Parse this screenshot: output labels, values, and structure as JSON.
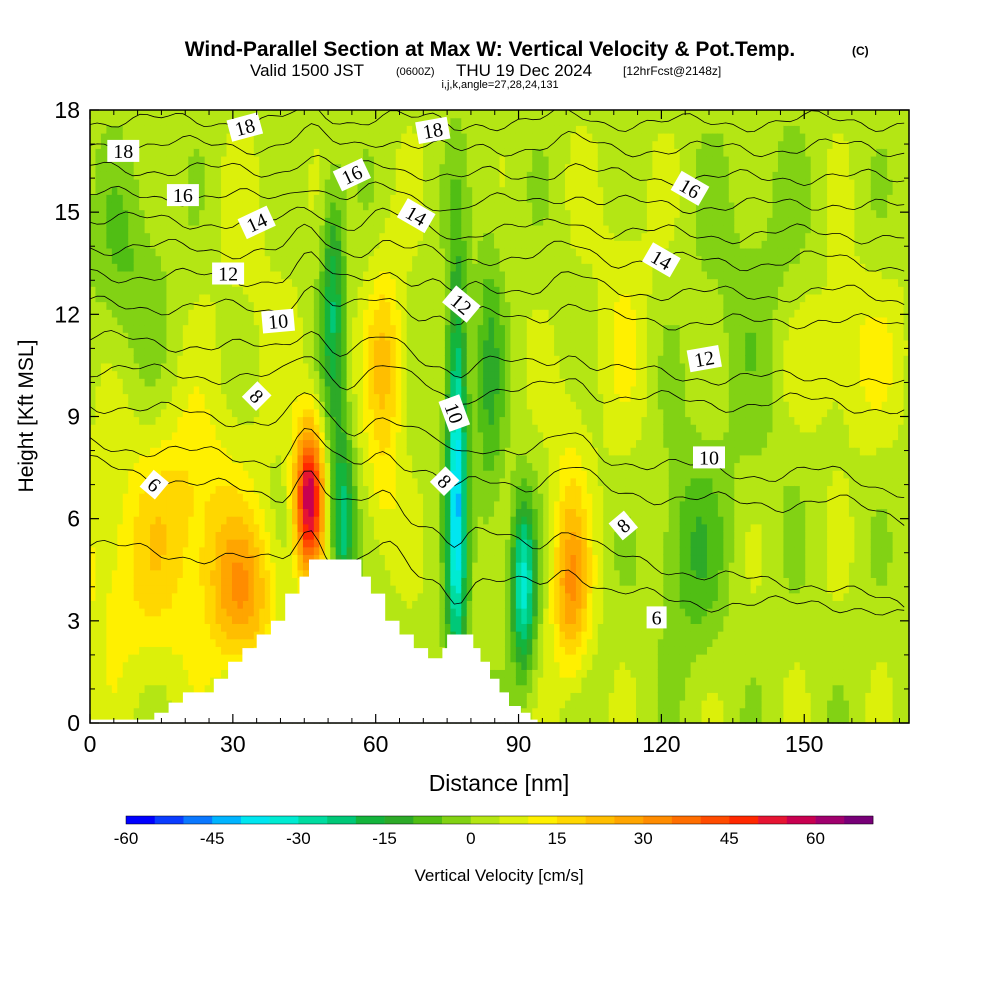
{
  "chart_data": {
    "type": "heatmap",
    "title": "Wind-Parallel Section at Max W: Vertical Velocity & Pot.Temp.",
    "title_unit": "(C)",
    "subtitle_main": "Valid 1500 JST",
    "subtitle_utc": "(0600Z)",
    "subtitle_date": "THU 19 Dec 2024",
    "subtitle_fcst": "[12hrFcst@2148z]",
    "subtitle_ijk": "i,j,k,angle=27,28,24,131",
    "xlabel": "Distance [nm]",
    "ylabel": "Height [Kft MSL]",
    "xlim": [
      0,
      172
    ],
    "ylim": [
      0,
      18
    ],
    "x_ticks": [
      0,
      30,
      60,
      90,
      120,
      150
    ],
    "y_ticks": [
      0,
      3,
      6,
      9,
      12,
      15,
      18
    ],
    "colorbar": {
      "label": "Vertical Velocity [cm/s]",
      "min": -60,
      "max": 70,
      "step": 5,
      "tick_values": [
        -60,
        -45,
        -30,
        -15,
        0,
        15,
        30,
        45,
        60
      ],
      "colors": [
        "#0000ff",
        "#0a3cff",
        "#0a78ff",
        "#00b4ff",
        "#00e6f0",
        "#00ebd2",
        "#00dca0",
        "#00c878",
        "#14b43c",
        "#2daa28",
        "#50be14",
        "#82d214",
        "#b4e614",
        "#dcf00a",
        "#fff000",
        "#ffd700",
        "#ffbe00",
        "#ffa500",
        "#ff8c00",
        "#ff6e00",
        "#ff4b00",
        "#ff2800",
        "#e61432",
        "#c80050",
        "#a0006e",
        "#780078"
      ]
    },
    "terrain_profile": {
      "x": [
        0,
        13.5,
        13.5,
        16.5,
        16.5,
        19.5,
        19.5,
        26,
        26,
        29,
        29,
        32,
        32,
        35,
        35,
        38,
        38,
        41,
        41,
        44,
        44,
        46,
        46,
        49,
        49,
        57,
        57,
        59,
        59,
        62,
        62,
        65,
        65,
        68,
        68,
        71,
        71,
        74,
        74,
        75,
        75,
        79,
        79,
        80.5,
        80.5,
        82,
        82,
        84,
        84,
        86,
        86,
        88,
        88,
        90.5,
        90.5,
        92.5,
        92.5,
        94
      ],
      "y": [
        0.1,
        0.1,
        0.3,
        0.3,
        0.6,
        0.6,
        0.9,
        0.9,
        1.3,
        1.3,
        1.8,
        1.8,
        2.2,
        2.2,
        2.6,
        2.6,
        3.0,
        3.0,
        3.8,
        3.8,
        4.3,
        4.3,
        4.8,
        4.8,
        4.8,
        4.8,
        4.3,
        4.3,
        3.8,
        3.8,
        3.0,
        3.0,
        2.6,
        2.6,
        2.2,
        2.2,
        1.9,
        1.9,
        2.2,
        2.2,
        2.6,
        2.6,
        2.6,
        2.6,
        2.2,
        2.2,
        1.8,
        1.8,
        1.3,
        1.3,
        0.9,
        0.9,
        0.5,
        0.5,
        0.3,
        0.3,
        0.1,
        0.1
      ]
    },
    "velocity_features": [
      {
        "x": 46,
        "y": 6.6,
        "w": 55,
        "sx": 3.0,
        "sy": 2.2
      },
      {
        "x": 32,
        "y": 3.8,
        "w": 22,
        "sx": 7.0,
        "sy": 2.2
      },
      {
        "x": 12,
        "y": 4.5,
        "w": 12,
        "sx": 18.0,
        "sy": 3.5
      },
      {
        "x": 22,
        "y": 7.0,
        "w": 8,
        "sx": 10.0,
        "sy": 2.5
      },
      {
        "x": 62,
        "y": 10.5,
        "w": 18,
        "sx": 4.0,
        "sy": 3.0
      },
      {
        "x": 61,
        "y": 6.5,
        "w": 6,
        "sx": 4.0,
        "sy": 2.0
      },
      {
        "x": 101,
        "y": 4.0,
        "w": 26,
        "sx": 4.0,
        "sy": 2.5
      },
      {
        "x": 101,
        "y": 8.0,
        "w": 6,
        "sx": 4.0,
        "sy": 2.5
      },
      {
        "x": 158,
        "y": 10.8,
        "w": 8,
        "sx": 14.0,
        "sy": 2.5
      },
      {
        "x": 112,
        "y": 12.0,
        "w": 6,
        "sx": 6.0,
        "sy": 4.0
      },
      {
        "x": 35,
        "y": 12.5,
        "w": 3,
        "sx": 10.0,
        "sy": 4.0
      },
      {
        "x": 77,
        "y": 7.0,
        "w": -42,
        "sx": 2.2,
        "sy": 6.0
      },
      {
        "x": 53,
        "y": 6.0,
        "w": -28,
        "sx": 2.5,
        "sy": 2.5
      },
      {
        "x": 51,
        "y": 12.5,
        "w": -22,
        "sx": 2.5,
        "sy": 3.5
      },
      {
        "x": 91,
        "y": 4.0,
        "w": -35,
        "sx": 2.5,
        "sy": 2.5
      },
      {
        "x": 84,
        "y": 10.0,
        "w": -12,
        "sx": 3.0,
        "sy": 5.0
      },
      {
        "x": 126,
        "y": 5.0,
        "w": -12,
        "sx": 7.0,
        "sy": 3.0
      },
      {
        "x": 140,
        "y": 12.0,
        "w": -6,
        "sx": 12.0,
        "sy": 5.0
      },
      {
        "x": 8,
        "y": 13.5,
        "w": -8,
        "sx": 8.0,
        "sy": 3.0
      }
    ],
    "velocity_background": 3,
    "isentropes": [
      {
        "label": "6",
        "y_left": 5.2,
        "y_right": 3.0
      },
      {
        "label": "6",
        "y_left": 7.6,
        "y_right": 3.3
      },
      {
        "label": "8",
        "y_left": 8.2,
        "y_right": 6.0
      },
      {
        "label": "8",
        "y_left": 9.4,
        "y_right": 6.8
      },
      {
        "label": "10",
        "y_left": 10.4,
        "y_right": 9.1
      },
      {
        "label": "10",
        "y_left": 11.3,
        "y_right": 9.8
      },
      {
        "label": "12",
        "y_left": 12.3,
        "y_right": 11.6
      },
      {
        "label": "12",
        "y_left": 13.2,
        "y_right": 12.4
      },
      {
        "label": "14",
        "y_left": 14.0,
        "y_right": 13.4
      },
      {
        "label": "14",
        "y_left": 14.8,
        "y_right": 14.2
      },
      {
        "label": "16",
        "y_left": 15.5,
        "y_right": 15.1
      },
      {
        "label": "16",
        "y_left": 16.3,
        "y_right": 15.9
      },
      {
        "label": "18",
        "y_left": 17.0,
        "y_right": 16.8
      },
      {
        "label": "18",
        "y_left": 17.7,
        "y_right": 17.6
      }
    ],
    "isentrope_labels": [
      {
        "text": "18",
        "x": 7,
        "y": 16.8,
        "angle": 0
      },
      {
        "text": "18",
        "x": 32.5,
        "y": 17.5,
        "angle": -15
      },
      {
        "text": "18",
        "x": 72,
        "y": 17.4,
        "angle": -10
      },
      {
        "text": "16",
        "x": 19.5,
        "y": 15.5,
        "angle": 0
      },
      {
        "text": "16",
        "x": 55,
        "y": 16.1,
        "angle": -25
      },
      {
        "text": "16",
        "x": 126,
        "y": 15.7,
        "angle": 30
      },
      {
        "text": "14",
        "x": 35,
        "y": 14.7,
        "angle": -25
      },
      {
        "text": "14",
        "x": 68.5,
        "y": 14.9,
        "angle": 30
      },
      {
        "text": "14",
        "x": 120,
        "y": 13.6,
        "angle": 30
      },
      {
        "text": "12",
        "x": 29,
        "y": 13.2,
        "angle": 0
      },
      {
        "text": "12",
        "x": 78,
        "y": 12.3,
        "angle": 40
      },
      {
        "text": "12",
        "x": 129,
        "y": 10.7,
        "angle": -10
      },
      {
        "text": "10",
        "x": 39.5,
        "y": 11.8,
        "angle": -5
      },
      {
        "text": "10",
        "x": 76.5,
        "y": 9.1,
        "angle": 70
      },
      {
        "text": "10",
        "x": 130,
        "y": 7.8,
        "angle": 0
      },
      {
        "text": "8",
        "x": 35,
        "y": 9.6,
        "angle": 45
      },
      {
        "text": "8",
        "x": 74.5,
        "y": 7.1,
        "angle": 45
      },
      {
        "text": "8",
        "x": 112,
        "y": 5.8,
        "angle": -40
      },
      {
        "text": "6",
        "x": 13.5,
        "y": 7.0,
        "angle": 40
      },
      {
        "text": "6",
        "x": 119,
        "y": 3.1,
        "angle": 0
      }
    ]
  }
}
